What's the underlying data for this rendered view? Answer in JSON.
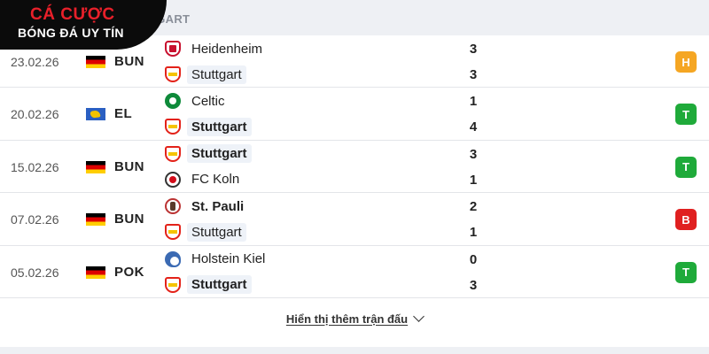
{
  "brand": {
    "line1": "CÁ CƯỢC",
    "line2": "BÓNG ĐÁ UY TÍN"
  },
  "header": {
    "title": "TGART"
  },
  "colors": {
    "draw": "#f5a623",
    "win": "#1faa3a",
    "loss": "#e02020",
    "accent": "#e8202a"
  },
  "matches": [
    {
      "date": "23.02.26",
      "competition": "BUN",
      "flag": "germany-flag",
      "home": {
        "team": "Heidenheim",
        "crest": "heidenheim-crest-icon",
        "score": "3"
      },
      "away": {
        "team": "Stuttgart",
        "crest": "stuttgart-crest-icon",
        "score": "3"
      },
      "result": "H"
    },
    {
      "date": "20.02.26",
      "competition": "EL",
      "flag": "europa-league-flag",
      "home": {
        "team": "Celtic",
        "crest": "celtic-crest-icon",
        "score": "1"
      },
      "away": {
        "team": "Stuttgart",
        "crest": "stuttgart-crest-icon",
        "score": "4"
      },
      "result": "T"
    },
    {
      "date": "15.02.26",
      "competition": "BUN",
      "flag": "germany-flag",
      "home": {
        "team": "Stuttgart",
        "crest": "stuttgart-crest-icon",
        "score": "3"
      },
      "away": {
        "team": "FC Koln",
        "crest": "koln-crest-icon",
        "score": "1"
      },
      "result": "T"
    },
    {
      "date": "07.02.26",
      "competition": "BUN",
      "flag": "germany-flag",
      "home": {
        "team": "St. Pauli",
        "crest": "st-pauli-crest-icon",
        "score": "2"
      },
      "away": {
        "team": "Stuttgart",
        "crest": "stuttgart-crest-icon",
        "score": "1"
      },
      "result": "B"
    },
    {
      "date": "05.02.26",
      "competition": "POK",
      "flag": "germany-flag",
      "home": {
        "team": "Holstein Kiel",
        "crest": "holstein-kiel-crest-icon",
        "score": "0"
      },
      "away": {
        "team": "Stuttgart",
        "crest": "stuttgart-crest-icon",
        "score": "3"
      },
      "result": "T"
    }
  ],
  "show_more": {
    "label": "Hiển thị thêm trận đấu",
    "icon": "chevron-down-icon"
  }
}
